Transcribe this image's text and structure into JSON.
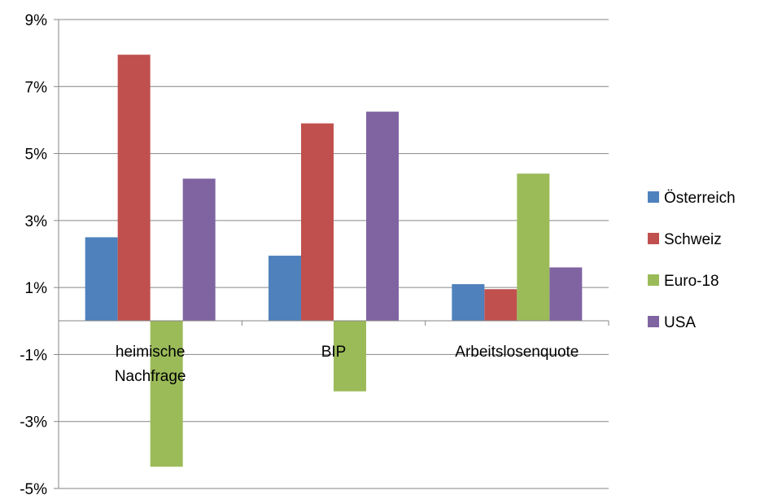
{
  "chart_data": {
    "type": "bar",
    "categories": [
      "heimische Nachfrage",
      "BIP",
      "Arbeitslosenquote"
    ],
    "category_lines": [
      [
        "heimische",
        "Nachfrage"
      ],
      [
        "BIP"
      ],
      [
        "Arbeitslosenquote"
      ]
    ],
    "series": [
      {
        "name": "Österreich",
        "color": "#4F81BD",
        "values": [
          2.5,
          1.95,
          1.1
        ]
      },
      {
        "name": "Schweiz",
        "color": "#C0504D",
        "values": [
          7.95,
          5.9,
          0.95
        ]
      },
      {
        "name": "Euro-18",
        "color": "#9BBB59",
        "values": [
          -4.35,
          -2.1,
          4.4
        ]
      },
      {
        "name": "USA",
        "color": "#8064A2",
        "values": [
          4.25,
          6.25,
          1.6
        ]
      }
    ],
    "ylim": [
      -5,
      9
    ],
    "yticks": [
      9,
      7,
      5,
      3,
      1,
      -1,
      -3,
      -5
    ],
    "ytick_labels": [
      "9%",
      "7%",
      "5%",
      "3%",
      "1%",
      "-1%",
      "-3%",
      "-5%"
    ],
    "grid": true,
    "legend_position": "right",
    "title": "",
    "xlabel": "",
    "ylabel": ""
  }
}
